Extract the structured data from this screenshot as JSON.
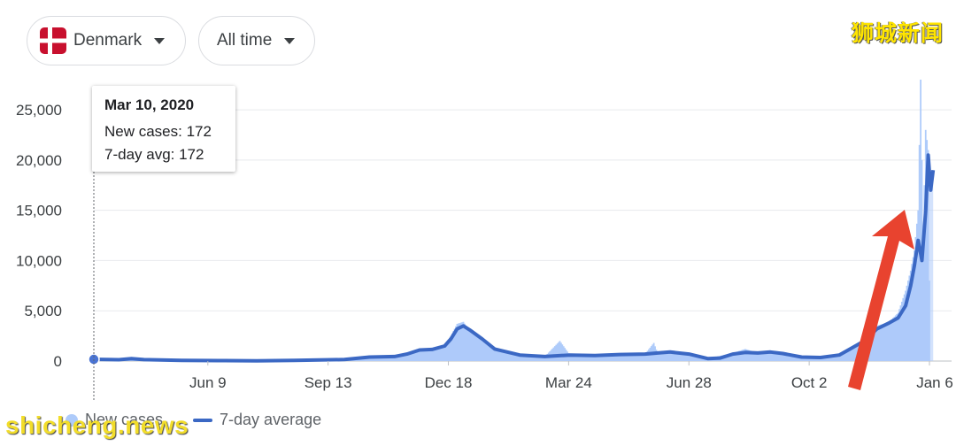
{
  "filters": {
    "country_label": "Denmark",
    "time_label": "All time"
  },
  "watermarks": {
    "top": "狮城新闻",
    "bottom": "shicheng.news"
  },
  "tooltip": {
    "date": "Mar 10, 2020",
    "new_cases": "New cases: 172",
    "avg": "7-day avg: 172"
  },
  "legend": {
    "new_cases": "New cases",
    "avg": "7-day average"
  },
  "colors": {
    "bars": "#aecbfa",
    "line": "#3b68c4",
    "arrow": "#e8432f"
  },
  "chart_data": {
    "type": "area",
    "y_ticks": [
      "25,000",
      "20,000",
      "15,000",
      "10,000",
      "5,000",
      "0"
    ],
    "y_tick_values": [
      25000,
      20000,
      15000,
      10000,
      5000,
      0
    ],
    "ylim": [
      0,
      28000
    ],
    "x_tick_labels": [
      "Jun 9",
      "Sep 13",
      "Dec 18",
      "Mar 24",
      "Jun 28",
      "Oct 2",
      "Jan 6"
    ],
    "x_tick_days": [
      91,
      187,
      283,
      379,
      475,
      571,
      667
    ],
    "xlim_days": [
      0,
      667
    ],
    "grid": true,
    "legend_placement": "bottom-left",
    "series": [
      {
        "name": "7-day average",
        "points": [
          [
            0,
            172
          ],
          [
            10,
            150
          ],
          [
            20,
            130
          ],
          [
            30,
            250
          ],
          [
            40,
            140
          ],
          [
            70,
            60
          ],
          [
            100,
            40
          ],
          [
            130,
            30
          ],
          [
            160,
            60
          ],
          [
            200,
            150
          ],
          [
            220,
            400
          ],
          [
            240,
            450
          ],
          [
            250,
            700
          ],
          [
            260,
            1100
          ],
          [
            270,
            1150
          ],
          [
            280,
            1500
          ],
          [
            285,
            2200
          ],
          [
            290,
            3200
          ],
          [
            295,
            3500
          ],
          [
            300,
            3100
          ],
          [
            310,
            2200
          ],
          [
            320,
            1200
          ],
          [
            340,
            600
          ],
          [
            360,
            450
          ],
          [
            380,
            600
          ],
          [
            400,
            550
          ],
          [
            420,
            650
          ],
          [
            440,
            700
          ],
          [
            450,
            800
          ],
          [
            460,
            900
          ],
          [
            475,
            700
          ],
          [
            490,
            250
          ],
          [
            500,
            300
          ],
          [
            510,
            700
          ],
          [
            520,
            850
          ],
          [
            530,
            800
          ],
          [
            540,
            900
          ],
          [
            550,
            750
          ],
          [
            565,
            400
          ],
          [
            580,
            350
          ],
          [
            595,
            600
          ],
          [
            605,
            1300
          ],
          [
            615,
            2000
          ],
          [
            625,
            3200
          ],
          [
            635,
            3800
          ],
          [
            642,
            4300
          ],
          [
            648,
            5500
          ],
          [
            652,
            7500
          ],
          [
            655,
            9500
          ],
          [
            658,
            12000
          ],
          [
            661,
            10000
          ],
          [
            664,
            15000
          ],
          [
            666,
            20500
          ],
          [
            668,
            17000
          ],
          [
            670,
            19000
          ]
        ]
      },
      {
        "name": "New cases",
        "points": [
          [
            0,
            172
          ],
          [
            20,
            120
          ],
          [
            40,
            200
          ],
          [
            70,
            50
          ],
          [
            100,
            30
          ],
          [
            130,
            30
          ],
          [
            160,
            70
          ],
          [
            200,
            180
          ],
          [
            220,
            450
          ],
          [
            240,
            500
          ],
          [
            250,
            800
          ],
          [
            260,
            1200
          ],
          [
            270,
            1200
          ],
          [
            280,
            1600
          ],
          [
            285,
            2500
          ],
          [
            290,
            3700
          ],
          [
            295,
            3900
          ],
          [
            300,
            3000
          ],
          [
            310,
            2000
          ],
          [
            320,
            1100
          ],
          [
            340,
            550
          ],
          [
            360,
            450
          ],
          [
            372,
            2000
          ],
          [
            380,
            600
          ],
          [
            400,
            550
          ],
          [
            420,
            650
          ],
          [
            440,
            700
          ],
          [
            447,
            1800
          ],
          [
            450,
            800
          ],
          [
            460,
            900
          ],
          [
            475,
            700
          ],
          [
            490,
            250
          ],
          [
            510,
            800
          ],
          [
            520,
            1200
          ],
          [
            530,
            800
          ],
          [
            540,
            900
          ],
          [
            550,
            750
          ],
          [
            565,
            400
          ],
          [
            580,
            350
          ],
          [
            595,
            600
          ],
          [
            605,
            1300
          ],
          [
            615,
            2200
          ],
          [
            620,
            4500
          ],
          [
            625,
            3500
          ],
          [
            635,
            3900
          ],
          [
            642,
            4800
          ],
          [
            648,
            7000
          ],
          [
            652,
            9000
          ],
          [
            655,
            11000
          ],
          [
            658,
            15000
          ],
          [
            660,
            28000
          ],
          [
            662,
            12000
          ],
          [
            664,
            23000
          ],
          [
            666,
            21000
          ],
          [
            667,
            8000
          ],
          [
            668,
            28000
          ],
          [
            670,
            26000
          ]
        ]
      }
    ],
    "annotations": [
      "Red arrow pointing up toward the January peak"
    ]
  }
}
